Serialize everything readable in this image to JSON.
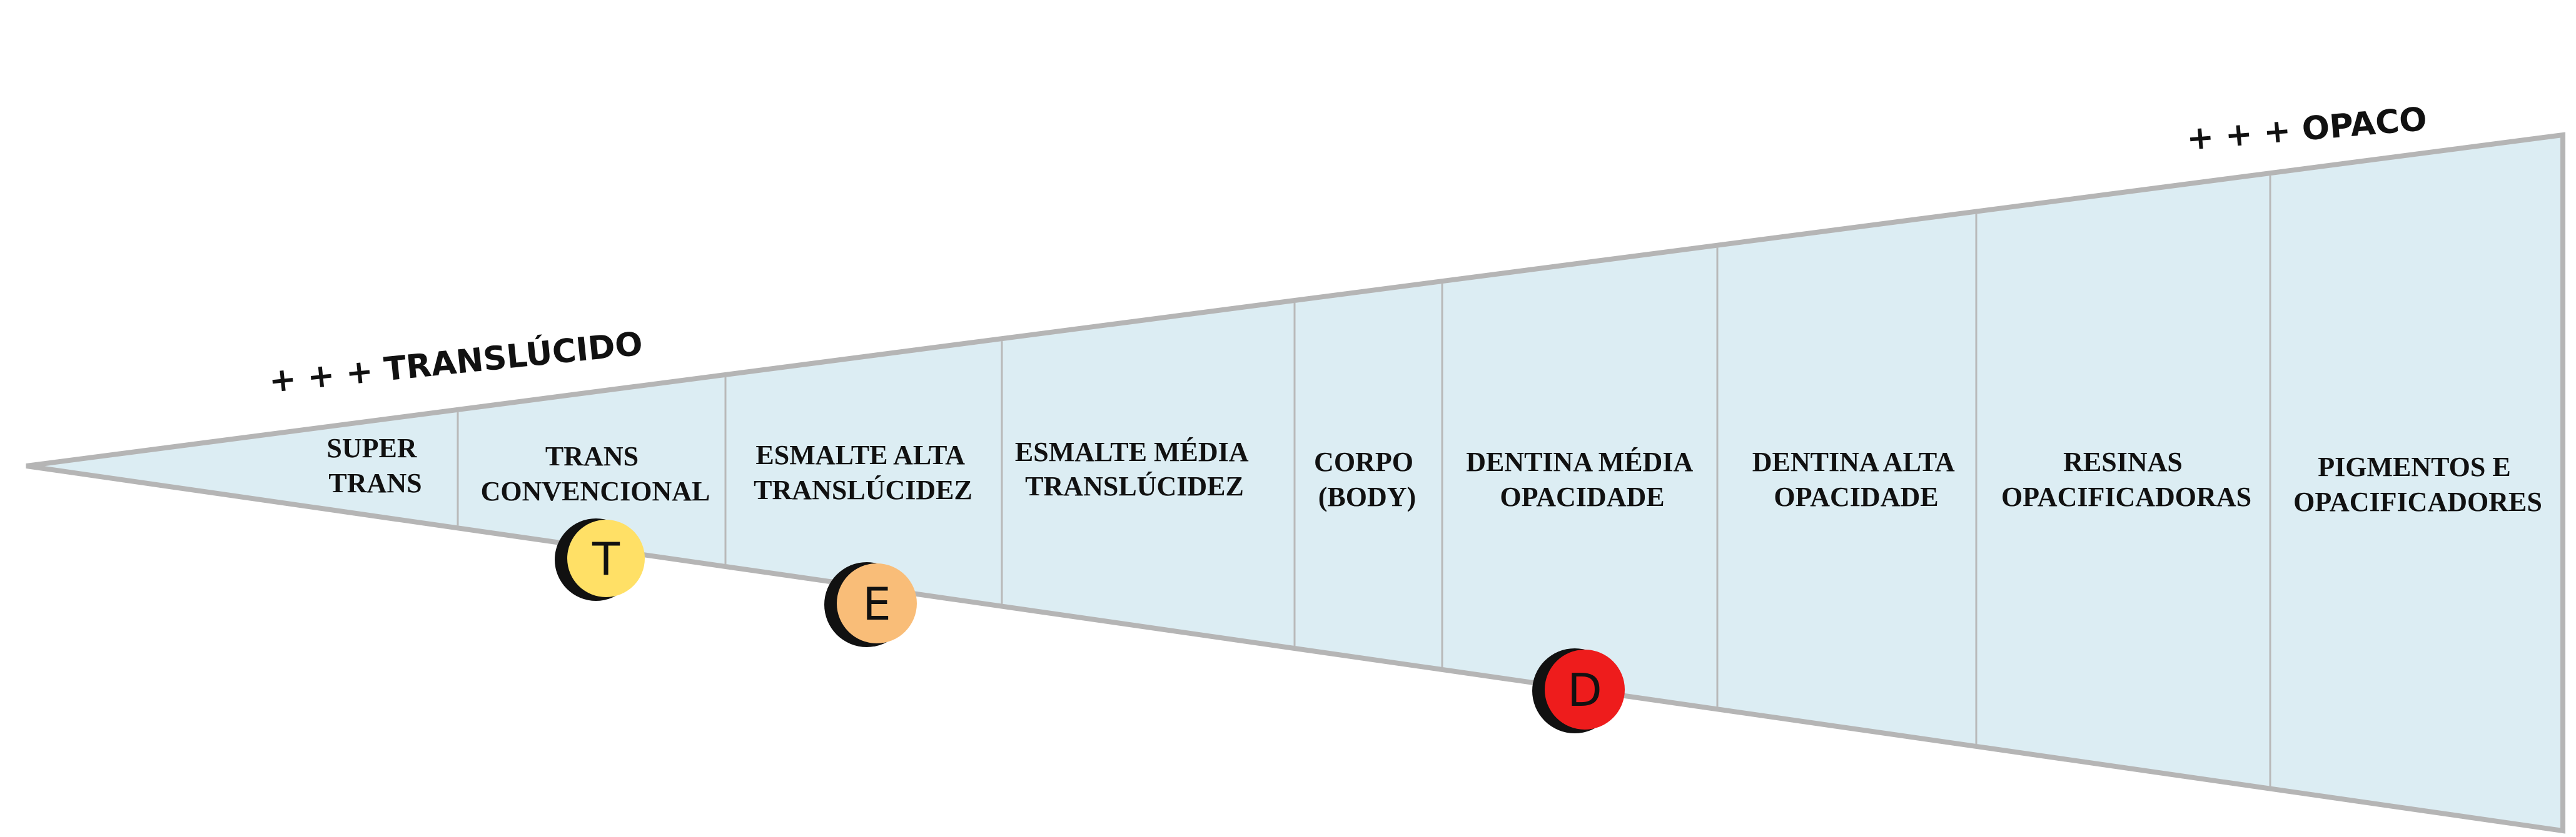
{
  "labels": {
    "translucent_end": "+ + + TRANSLÚCIDO",
    "opaque_end": "+ + + OPACO"
  },
  "categories": [
    {
      "lines": [
        "SUPER",
        "TRANS"
      ]
    },
    {
      "lines": [
        "TRANS",
        "CONVENCIONAL"
      ]
    },
    {
      "lines": [
        "ESMALTE ALTA",
        "TRANSLÚCIDEZ"
      ]
    },
    {
      "lines": [
        "ESMALTE MÉDIA",
        "TRANSLÚCIDEZ"
      ]
    },
    {
      "lines": [
        "CORPO",
        "(BODY)"
      ]
    },
    {
      "lines": [
        "DENTINA MÉDIA",
        "OPACIDADE"
      ]
    },
    {
      "lines": [
        "DENTINA ALTA",
        "OPACIDADE"
      ]
    },
    {
      "lines": [
        "RESINAS",
        "OPACIFICADORAS"
      ]
    },
    {
      "lines": [
        "PIGMENTOS E",
        "OPACIFICADORES"
      ]
    }
  ],
  "markers": [
    {
      "letter": "T",
      "color": "#ffe066"
    },
    {
      "letter": "E",
      "color": "#f9bd78"
    },
    {
      "letter": "D",
      "color": "#ee1c1c"
    }
  ],
  "colors": {
    "wedge_fill": "#dcedf3",
    "wedge_stroke": "#b5b5b5",
    "divider": "#b9b9b9"
  }
}
